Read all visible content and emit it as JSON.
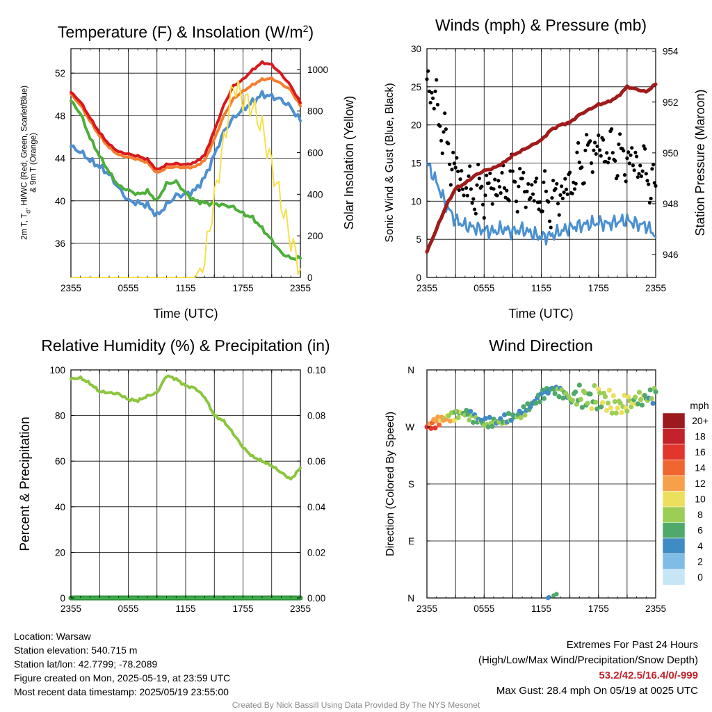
{
  "panel_titles": {
    "temperature": "Temperature (F) & Insolation (W/m²)",
    "winds": "Winds (mph) & Pressure (mb)",
    "humidity": "Relative Humidity (%) & Precipitation (in)",
    "direction": "Wind Direction"
  },
  "x_ticks": [
    "2355",
    "0555",
    "1155",
    "1755",
    "2355"
  ],
  "colors": {
    "temp_red": "#d7191c",
    "temp_orange": "#f47d2f",
    "temp_green": "#4daf3a",
    "temp_blue": "#4e8fd0",
    "insolation": "#f7e04b",
    "wind_blue": "#4a90d0",
    "gust_black": "#000000",
    "pressure_maroon": "#a11b1b",
    "rh_green": "#8cc63f",
    "precip_green": "#3fae49"
  },
  "chart_data": [
    {
      "type": "line",
      "title": "Temperature (F) & Insolation (W/m²)",
      "xlabel": "Time (UTC)",
      "ylabel": "2m T, Td, HI/WC (Red, Green, Scarlet/Blue) & 9m T (Orange)",
      "ylabel_right": "Solar Insolation (Yellow)",
      "ylim": [
        32.8,
        54.3
      ],
      "y_ticks": [
        36,
        40,
        44,
        48,
        52
      ],
      "ylim_right": [
        0,
        1100
      ],
      "y_ticks_right": [
        0,
        200,
        400,
        600,
        800,
        1000
      ],
      "x_hours": [
        0,
        1,
        2,
        3,
        4,
        5,
        6,
        7,
        8,
        9,
        10,
        11,
        12,
        13,
        14,
        15,
        16,
        17,
        18,
        19,
        20,
        21,
        22,
        23,
        24
      ],
      "series": [
        {
          "values": [
            50.2,
            49.3,
            47.8,
            46.4,
            45.3,
            44.6,
            44.4,
            44.2,
            43.9,
            42.9,
            43.4,
            43.5,
            43.4,
            43.6,
            44.3,
            46.6,
            49.0,
            50.8,
            51.4,
            52.3,
            53.0,
            52.8,
            51.9,
            50.8,
            49.2
          ],
          "color": "#d7191c"
        },
        {
          "values": [
            50.0,
            49.0,
            47.5,
            46.1,
            45.0,
            44.3,
            44.1,
            43.9,
            43.6,
            42.6,
            43.1,
            43.2,
            43.1,
            43.2,
            43.8,
            45.8,
            48.0,
            49.6,
            50.3,
            50.9,
            51.4,
            51.5,
            51.0,
            50.4,
            48.9
          ],
          "color": "#f47d2f"
        },
        {
          "values": [
            49.4,
            48.2,
            45.9,
            44.2,
            42.7,
            41.4,
            41.0,
            40.6,
            40.9,
            40.0,
            41.6,
            41.8,
            40.7,
            40.0,
            39.8,
            39.7,
            39.6,
            39.4,
            38.8,
            38.4,
            37.4,
            36.3,
            35.1,
            34.6,
            34.6
          ],
          "color": "#4daf3a"
        },
        {
          "values": [
            45.1,
            44.6,
            43.8,
            43.2,
            42.5,
            41.2,
            40.0,
            39.8,
            39.6,
            38.6,
            39.6,
            40.5,
            40.6,
            41.0,
            42.2,
            44.3,
            46.5,
            47.8,
            48.6,
            49.3,
            50.0,
            49.8,
            49.5,
            48.8,
            47.5
          ],
          "color": "#4e8fd0"
        },
        {
          "values": [
            0,
            0,
            0,
            0,
            0,
            0,
            0,
            0,
            0,
            0,
            0,
            0,
            0,
            0,
            90,
            380,
            650,
            930,
            860,
            820,
            720,
            540,
            360,
            180,
            40
          ],
          "color": "#f7e04b"
        }
      ]
    },
    {
      "type": "scatter",
      "title": "Winds (mph) & Pressure (mb)",
      "xlabel": "Time (UTC)",
      "ylabel": "Sonic Wind & Gust (Blue, Black)",
      "ylabel_right": "Station Pressure (Maroon)",
      "ylim": [
        0,
        30
      ],
      "y_ticks": [
        0,
        5,
        10,
        15,
        20,
        25,
        30
      ],
      "ylim_right": [
        945.1,
        954.1
      ],
      "y_ticks_right": [
        946,
        948,
        950,
        952,
        954
      ],
      "x_hours": [
        0,
        1,
        2,
        3,
        4,
        5,
        6,
        7,
        8,
        9,
        10,
        11,
        12,
        13,
        14,
        15,
        16,
        17,
        18,
        19,
        20,
        21,
        22,
        23,
        24
      ],
      "series": [
        {
          "values": [
            15.0,
            12.5,
            9.5,
            7.5,
            6.8,
            6.5,
            6.2,
            6.0,
            6.4,
            6.0,
            6.3,
            5.8,
            5.3,
            5.5,
            6.0,
            6.5,
            6.8,
            7.0,
            7.2,
            7.0,
            7.3,
            7.5,
            7.0,
            6.8,
            5.5
          ],
          "color": "#4a90d0"
        },
        {
          "values": [
            26.0,
            22.5,
            17.5,
            14.0,
            12.0,
            11.0,
            11.5,
            11.8,
            12.0,
            12.5,
            12.0,
            11.0,
            10.5,
            10.0,
            11.0,
            12.0,
            14.5,
            16.5,
            17.0,
            16.5,
            16.0,
            15.5,
            15.0,
            14.0,
            11.0
          ],
          "color": "#000000"
        },
        {
          "values": [
            946.1,
            947.0,
            947.9,
            948.6,
            948.8,
            949.1,
            949.3,
            949.4,
            949.6,
            949.9,
            950.1,
            950.3,
            950.5,
            950.9,
            951.1,
            951.2,
            951.5,
            951.7,
            951.9,
            952.0,
            952.2,
            952.6,
            952.5,
            952.4,
            952.7
          ],
          "color": "#a11b1b"
        }
      ]
    },
    {
      "type": "line",
      "title": "Relative Humidity (%) & Precipitation (in)",
      "xlabel": "",
      "ylabel": "Percent & Precipitation",
      "ylim": [
        0,
        100
      ],
      "y_ticks": [
        0,
        20,
        40,
        60,
        80,
        100
      ],
      "ylim_right": [
        0,
        0.1
      ],
      "y_ticks_right": [
        "0.00",
        "0.02",
        "0.04",
        "0.06",
        "0.08",
        "0.10"
      ],
      "x_hours": [
        0,
        1,
        2,
        3,
        4,
        5,
        6,
        7,
        8,
        9,
        10,
        11,
        12,
        13,
        14,
        15,
        16,
        17,
        18,
        19,
        20,
        21,
        22,
        23,
        24
      ],
      "series": [
        {
          "values": [
            96,
            96.5,
            94,
            90.5,
            90,
            89.5,
            87,
            86.5,
            88.5,
            90,
            97.5,
            96,
            93,
            92,
            88,
            80,
            77.5,
            72,
            66,
            62,
            60,
            58,
            55,
            52,
            57
          ],
          "color": "#8cc63f"
        },
        {
          "values": [
            0,
            0,
            0,
            0,
            0,
            0,
            0,
            0,
            0,
            0,
            0,
            0,
            0,
            0,
            0,
            0,
            0,
            0,
            0,
            0,
            0,
            0,
            0,
            0,
            0
          ],
          "color": "#3fae49"
        }
      ]
    },
    {
      "type": "scatter",
      "title": "Wind Direction",
      "xlabel": "",
      "ylabel": "Direction (Colored By Speed)",
      "y_categories_bottom_to_top": [
        "N",
        "E",
        "S",
        "W",
        "N"
      ],
      "ylim": [
        0,
        360
      ],
      "x_hours": [
        0,
        1,
        2,
        3,
        4,
        5,
        6,
        7,
        8,
        9,
        10,
        11,
        12,
        13,
        14,
        15,
        16,
        17,
        18,
        19,
        20,
        21,
        22,
        23,
        24
      ],
      "direction_deg": [
        270,
        278,
        284,
        290,
        292,
        284,
        276,
        277,
        280,
        285,
        292,
        305,
        320,
        330,
        326,
        316,
        318,
        313,
        316,
        310,
        302,
        306,
        312,
        316,
        320
      ],
      "speed_mph": [
        15,
        13,
        10,
        8,
        7,
        6,
        6,
        6,
        6,
        6,
        6,
        5,
        5,
        5,
        6,
        7,
        7,
        7,
        8,
        9,
        9,
        9,
        8,
        7,
        6
      ],
      "low_points": {
        "x_hours": [
          12.7,
          12.8,
          13.3,
          13.6
        ],
        "direction_deg": [
          0,
          1,
          4,
          6
        ],
        "speed_mph": [
          4,
          4,
          5,
          6
        ]
      },
      "colorbar": {
        "title": "mph",
        "labels": [
          "20+",
          "18",
          "16",
          "14",
          "12",
          "10",
          "8",
          "6",
          "4",
          "2",
          "0"
        ],
        "colors": [
          "#9b1a1d",
          "#c4222a",
          "#e2352c",
          "#ef6630",
          "#f7a04a",
          "#ecdf5c",
          "#9cce55",
          "#4fa96b",
          "#3f8bc4",
          "#7fbde6",
          "#c6e6f6"
        ]
      }
    }
  ],
  "info_left": [
    "Location: Warsaw",
    "Station elevation: 540.715 m",
    "Station lat/lon: 42.7799; -78.2089",
    "Figure created on Mon, 2025-05-19, at 23:59 UTC",
    "Most recent data timestamp: 2025/05/19 23:55:00"
  ],
  "extremes": {
    "heading": "Extremes For Past 24 Hours",
    "subheading": "(High/Low/Max Wind/Precipitation/Snow Depth)",
    "values": "53.2/42.5/16.4/0/-999",
    "max_gust": "Max Gust: 28.4 mph On 05/19 at 0025 UTC"
  },
  "credit": "Created By Nick Bassill Using Data Provided By The NYS Mesonet"
}
